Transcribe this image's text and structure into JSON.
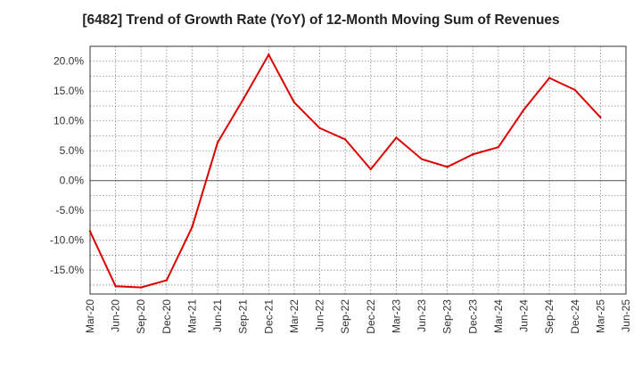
{
  "chart_data": {
    "type": "line",
    "title": "[6482]  Trend of Growth Rate (YoY) of 12-Month Moving Sum of Revenues",
    "xlabel": "",
    "ylabel": "",
    "x_ticks": [
      "Mar-20",
      "Jun-20",
      "Sep-20",
      "Dec-20",
      "Mar-21",
      "Jun-21",
      "Sep-21",
      "Dec-21",
      "Mar-22",
      "Jun-22",
      "Sep-22",
      "Dec-22",
      "Mar-23",
      "Jun-23",
      "Sep-23",
      "Dec-23",
      "Mar-24",
      "Jun-24",
      "Sep-24",
      "Dec-24",
      "Mar-25",
      "Jun-25"
    ],
    "y_ticks": [
      "20.0%",
      "15.0%",
      "10.0%",
      "5.0%",
      "0.0%",
      "-5.0%",
      "-10.0%",
      "-15.0%"
    ],
    "y_tick_values": [
      20,
      15,
      10,
      5,
      0,
      -5,
      -10,
      -15
    ],
    "ylim": [
      -19,
      22.5
    ],
    "grid": true,
    "legend": "none",
    "series": [
      {
        "color": "#dd0000",
        "x": [
          "Mar-20",
          "Jun-20",
          "Sep-20",
          "Dec-20",
          "Mar-21",
          "Jun-21",
          "Sep-21",
          "Dec-21",
          "Mar-22",
          "Jun-22",
          "Sep-22",
          "Dec-22",
          "Mar-23",
          "Jun-23",
          "Sep-23",
          "Dec-23",
          "Mar-24",
          "Jun-24",
          "Sep-24",
          "Dec-24",
          "Mar-25"
        ],
        "values": [
          -8.5,
          -17.7,
          -17.9,
          -16.7,
          -7.8,
          6.4,
          13.6,
          21.1,
          13.1,
          8.8,
          6.9,
          1.9,
          7.2,
          3.6,
          2.3,
          4.4,
          5.6,
          11.9,
          17.2,
          15.2,
          10.6
        ]
      }
    ]
  }
}
